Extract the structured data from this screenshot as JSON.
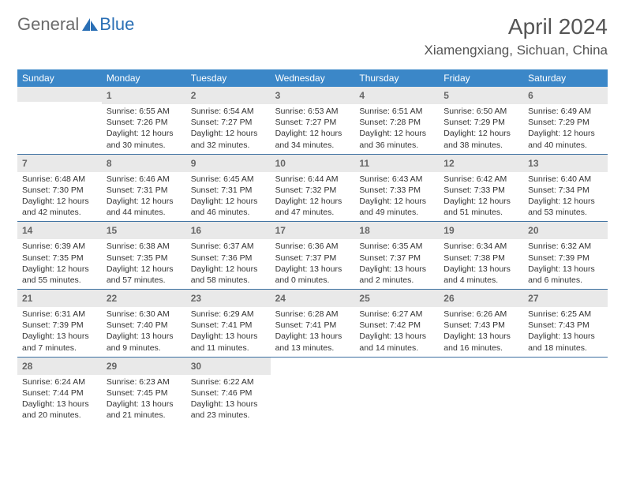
{
  "logo": {
    "text1": "General",
    "text2": "Blue"
  },
  "title": "April 2024",
  "location": "Xiamengxiang, Sichuan, China",
  "colors": {
    "header_bar": "#3b87c8",
    "daynum_bg": "#e9e9e9",
    "week_divider": "#3b6fa0",
    "logo_gray": "#6b6b6b",
    "logo_blue": "#2a6fb5"
  },
  "dow": [
    "Sunday",
    "Monday",
    "Tuesday",
    "Wednesday",
    "Thursday",
    "Friday",
    "Saturday"
  ],
  "labels": {
    "sunrise_prefix": "Sunrise: ",
    "sunset_prefix": "Sunset: ",
    "daylight_prefix": "Daylight: "
  },
  "weeks": [
    [
      {
        "n": "",
        "sunrise": "",
        "sunset": "",
        "daylight": ""
      },
      {
        "n": "1",
        "sunrise": "6:55 AM",
        "sunset": "7:26 PM",
        "daylight": "12 hours and 30 minutes."
      },
      {
        "n": "2",
        "sunrise": "6:54 AM",
        "sunset": "7:27 PM",
        "daylight": "12 hours and 32 minutes."
      },
      {
        "n": "3",
        "sunrise": "6:53 AM",
        "sunset": "7:27 PM",
        "daylight": "12 hours and 34 minutes."
      },
      {
        "n": "4",
        "sunrise": "6:51 AM",
        "sunset": "7:28 PM",
        "daylight": "12 hours and 36 minutes."
      },
      {
        "n": "5",
        "sunrise": "6:50 AM",
        "sunset": "7:29 PM",
        "daylight": "12 hours and 38 minutes."
      },
      {
        "n": "6",
        "sunrise": "6:49 AM",
        "sunset": "7:29 PM",
        "daylight": "12 hours and 40 minutes."
      }
    ],
    [
      {
        "n": "7",
        "sunrise": "6:48 AM",
        "sunset": "7:30 PM",
        "daylight": "12 hours and 42 minutes."
      },
      {
        "n": "8",
        "sunrise": "6:46 AM",
        "sunset": "7:31 PM",
        "daylight": "12 hours and 44 minutes."
      },
      {
        "n": "9",
        "sunrise": "6:45 AM",
        "sunset": "7:31 PM",
        "daylight": "12 hours and 46 minutes."
      },
      {
        "n": "10",
        "sunrise": "6:44 AM",
        "sunset": "7:32 PM",
        "daylight": "12 hours and 47 minutes."
      },
      {
        "n": "11",
        "sunrise": "6:43 AM",
        "sunset": "7:33 PM",
        "daylight": "12 hours and 49 minutes."
      },
      {
        "n": "12",
        "sunrise": "6:42 AM",
        "sunset": "7:33 PM",
        "daylight": "12 hours and 51 minutes."
      },
      {
        "n": "13",
        "sunrise": "6:40 AM",
        "sunset": "7:34 PM",
        "daylight": "12 hours and 53 minutes."
      }
    ],
    [
      {
        "n": "14",
        "sunrise": "6:39 AM",
        "sunset": "7:35 PM",
        "daylight": "12 hours and 55 minutes."
      },
      {
        "n": "15",
        "sunrise": "6:38 AM",
        "sunset": "7:35 PM",
        "daylight": "12 hours and 57 minutes."
      },
      {
        "n": "16",
        "sunrise": "6:37 AM",
        "sunset": "7:36 PM",
        "daylight": "12 hours and 58 minutes."
      },
      {
        "n": "17",
        "sunrise": "6:36 AM",
        "sunset": "7:37 PM",
        "daylight": "13 hours and 0 minutes."
      },
      {
        "n": "18",
        "sunrise": "6:35 AM",
        "sunset": "7:37 PM",
        "daylight": "13 hours and 2 minutes."
      },
      {
        "n": "19",
        "sunrise": "6:34 AM",
        "sunset": "7:38 PM",
        "daylight": "13 hours and 4 minutes."
      },
      {
        "n": "20",
        "sunrise": "6:32 AM",
        "sunset": "7:39 PM",
        "daylight": "13 hours and 6 minutes."
      }
    ],
    [
      {
        "n": "21",
        "sunrise": "6:31 AM",
        "sunset": "7:39 PM",
        "daylight": "13 hours and 7 minutes."
      },
      {
        "n": "22",
        "sunrise": "6:30 AM",
        "sunset": "7:40 PM",
        "daylight": "13 hours and 9 minutes."
      },
      {
        "n": "23",
        "sunrise": "6:29 AM",
        "sunset": "7:41 PM",
        "daylight": "13 hours and 11 minutes."
      },
      {
        "n": "24",
        "sunrise": "6:28 AM",
        "sunset": "7:41 PM",
        "daylight": "13 hours and 13 minutes."
      },
      {
        "n": "25",
        "sunrise": "6:27 AM",
        "sunset": "7:42 PM",
        "daylight": "13 hours and 14 minutes."
      },
      {
        "n": "26",
        "sunrise": "6:26 AM",
        "sunset": "7:43 PM",
        "daylight": "13 hours and 16 minutes."
      },
      {
        "n": "27",
        "sunrise": "6:25 AM",
        "sunset": "7:43 PM",
        "daylight": "13 hours and 18 minutes."
      }
    ],
    [
      {
        "n": "28",
        "sunrise": "6:24 AM",
        "sunset": "7:44 PM",
        "daylight": "13 hours and 20 minutes."
      },
      {
        "n": "29",
        "sunrise": "6:23 AM",
        "sunset": "7:45 PM",
        "daylight": "13 hours and 21 minutes."
      },
      {
        "n": "30",
        "sunrise": "6:22 AM",
        "sunset": "7:46 PM",
        "daylight": "13 hours and 23 minutes."
      },
      {
        "n": "",
        "sunrise": "",
        "sunset": "",
        "daylight": ""
      },
      {
        "n": "",
        "sunrise": "",
        "sunset": "",
        "daylight": ""
      },
      {
        "n": "",
        "sunrise": "",
        "sunset": "",
        "daylight": ""
      },
      {
        "n": "",
        "sunrise": "",
        "sunset": "",
        "daylight": ""
      }
    ]
  ]
}
